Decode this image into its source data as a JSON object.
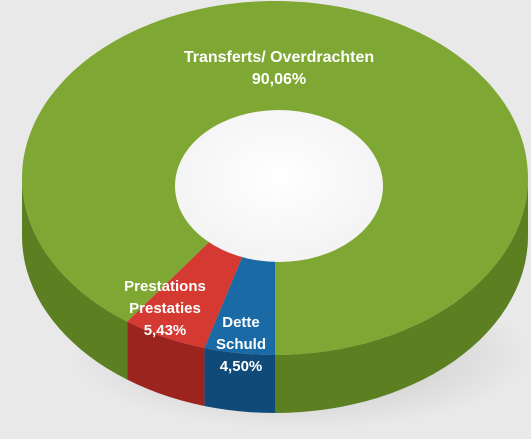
{
  "chart_data": {
    "type": "pie",
    "style": "3d-donut",
    "slices": [
      {
        "lines": [
          "Transferts/ Overdrachten"
        ],
        "value": 90.06,
        "value_label": "90,06%",
        "color": "#7fa733",
        "side_color": "#5c7f22"
      },
      {
        "lines": [
          "Dette",
          "Schuld"
        ],
        "value": 4.5,
        "value_label": "4,50%",
        "color": "#1a6aa6",
        "side_color": "#0f4a78"
      },
      {
        "lines": [
          "Prestations",
          "Prestaties"
        ],
        "value": 5.43,
        "value_label": "5,43%",
        "color": "#d43a31",
        "side_color": "#9c241f"
      }
    ]
  }
}
